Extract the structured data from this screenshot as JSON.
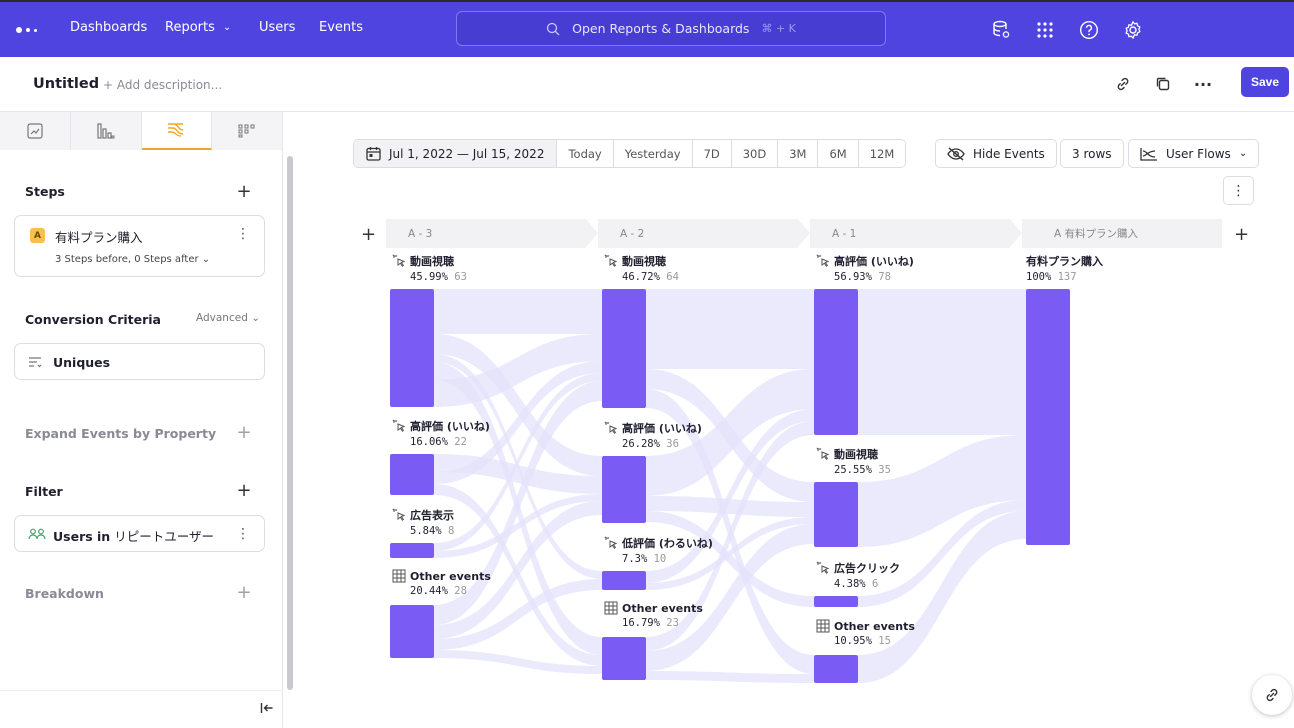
{
  "nav": {
    "items": [
      {
        "label": "Dashboards",
        "x": 70
      },
      {
        "label": "Reports",
        "x": 165,
        "dropdown": true
      },
      {
        "label": "Users",
        "x": 259
      },
      {
        "label": "Events",
        "x": 319
      }
    ],
    "search_placeholder": "Open Reports & Dashboards",
    "search_shortcut": "⌘ + K"
  },
  "titlebar": {
    "title": "Untitled",
    "description_placeholder": "+ Add description...",
    "save_label": "Save"
  },
  "sidebar": {
    "steps_title": "Steps",
    "step": {
      "badge": "A",
      "name": "有料プラン購入",
      "meta": "3 Steps before, 0 Steps after"
    },
    "conversion_title": "Conversion Criteria",
    "conversion_advanced": "Advanced",
    "uniques_label": "Uniques",
    "expand_title": "Expand Events by Property",
    "filter_title": "Filter",
    "filter_prefix": "Users in",
    "filter_value": "リピートユーザー",
    "breakdown_title": "Breakdown"
  },
  "toolbar": {
    "date_range": "Jul 1, 2022 — Jul 15, 2022",
    "presets": [
      "Today",
      "Yesterday",
      "7D",
      "30D",
      "3M",
      "6M",
      "12M"
    ],
    "hide_events": "Hide Events",
    "rows": "3 rows",
    "view": "User Flows"
  },
  "chart_data": {
    "type": "sankey",
    "columns": [
      {
        "header": "A - 3",
        "nodes": [
          {
            "name": "動画視聴",
            "percent": "45.99%",
            "count": 63
          },
          {
            "name": "高評価 (いいね)",
            "percent": "16.06%",
            "count": 22
          },
          {
            "name": "広告表示",
            "percent": "5.84%",
            "count": 8
          },
          {
            "name": "Other events",
            "percent": "20.44%",
            "count": 28,
            "other": true
          }
        ]
      },
      {
        "header": "A - 2",
        "nodes": [
          {
            "name": "動画視聴",
            "percent": "46.72%",
            "count": 64
          },
          {
            "name": "高評価 (いいね)",
            "percent": "26.28%",
            "count": 36
          },
          {
            "name": "低評価 (わるいね)",
            "percent": "7.3%",
            "count": 10
          },
          {
            "name": "Other events",
            "percent": "16.79%",
            "count": 23,
            "other": true
          }
        ]
      },
      {
        "header": "A - 1",
        "nodes": [
          {
            "name": "高評価 (いいね)",
            "percent": "56.93%",
            "count": 78
          },
          {
            "name": "動画視聴",
            "percent": "25.55%",
            "count": 35
          },
          {
            "name": "広告クリック",
            "percent": "4.38%",
            "count": 6
          },
          {
            "name": "Other events",
            "percent": "10.95%",
            "count": 15,
            "other": true
          }
        ]
      },
      {
        "header": "A 有料プラン購入",
        "nodes": [
          {
            "name": "有料プラン購入",
            "percent": "100%",
            "count": 137,
            "final": true
          }
        ]
      }
    ],
    "colors": {
      "node": "#7a5cf5",
      "link": "#e4e1fb"
    }
  }
}
